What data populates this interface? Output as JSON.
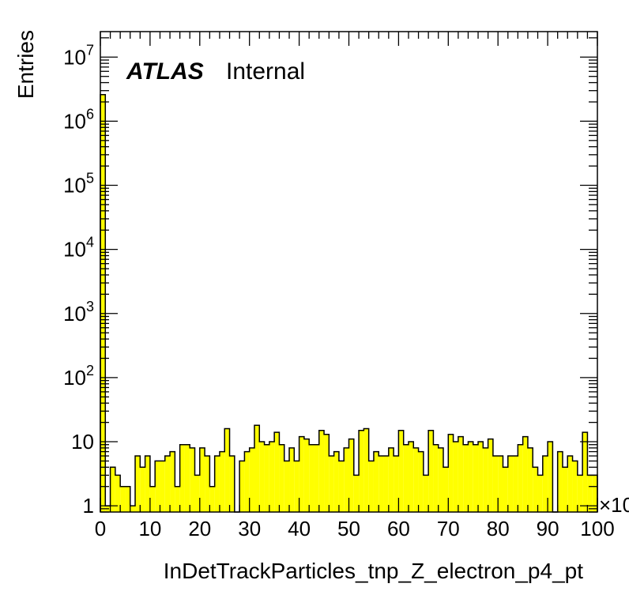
{
  "chart_data": {
    "type": "bar",
    "histogram": true,
    "xlabel": "InDetTrackParticles_tnp_Z_electron_p4_pt",
    "ylabel": "Entries",
    "x_multiplier": "×10",
    "xlim": [
      0,
      100
    ],
    "ylim": [
      0.8,
      25000000
    ],
    "y_log_scale": true,
    "bin_width": 1,
    "x_tick_labels": [
      "0",
      "10",
      "20",
      "30",
      "40",
      "50",
      "60",
      "70",
      "80",
      "90",
      "100"
    ],
    "y_tick_labels": [
      {
        "value": 1,
        "base": "1",
        "exp": ""
      },
      {
        "value": 10,
        "base": "10",
        "exp": ""
      },
      {
        "value": 100,
        "base": "10",
        "exp": "2"
      },
      {
        "value": 1000,
        "base": "10",
        "exp": "3"
      },
      {
        "value": 10000,
        "base": "10",
        "exp": "4"
      },
      {
        "value": 100000,
        "base": "10",
        "exp": "5"
      },
      {
        "value": 1000000,
        "base": "10",
        "exp": "6"
      },
      {
        "value": 10000000,
        "base": "10",
        "exp": "7"
      }
    ],
    "label_atlas": "ATLAS",
    "label_internal": "Internal",
    "fill_color": "#ffff00",
    "line_color": "#000000",
    "values": [
      2600000,
      1,
      4,
      3,
      2,
      2,
      1,
      6,
      4,
      6,
      2,
      5,
      5,
      6,
      7,
      2,
      9,
      9,
      8,
      3,
      8,
      6,
      2,
      6,
      7,
      16,
      6,
      0,
      5,
      7,
      8,
      18,
      10,
      9,
      10,
      14,
      9,
      5,
      8,
      5,
      12,
      11,
      9,
      9,
      15,
      13,
      6,
      7,
      5,
      8,
      11,
      3,
      15,
      16,
      5,
      7,
      6,
      6,
      8,
      6,
      15,
      9,
      10,
      8,
      7,
      3,
      15,
      9,
      8,
      4,
      13,
      10,
      12,
      9,
      10,
      9,
      10,
      8,
      11,
      6,
      6,
      4,
      6,
      6,
      9,
      12,
      8,
      4,
      3,
      6,
      10,
      0,
      7,
      4,
      6,
      5,
      3,
      14,
      3,
      3
    ]
  }
}
